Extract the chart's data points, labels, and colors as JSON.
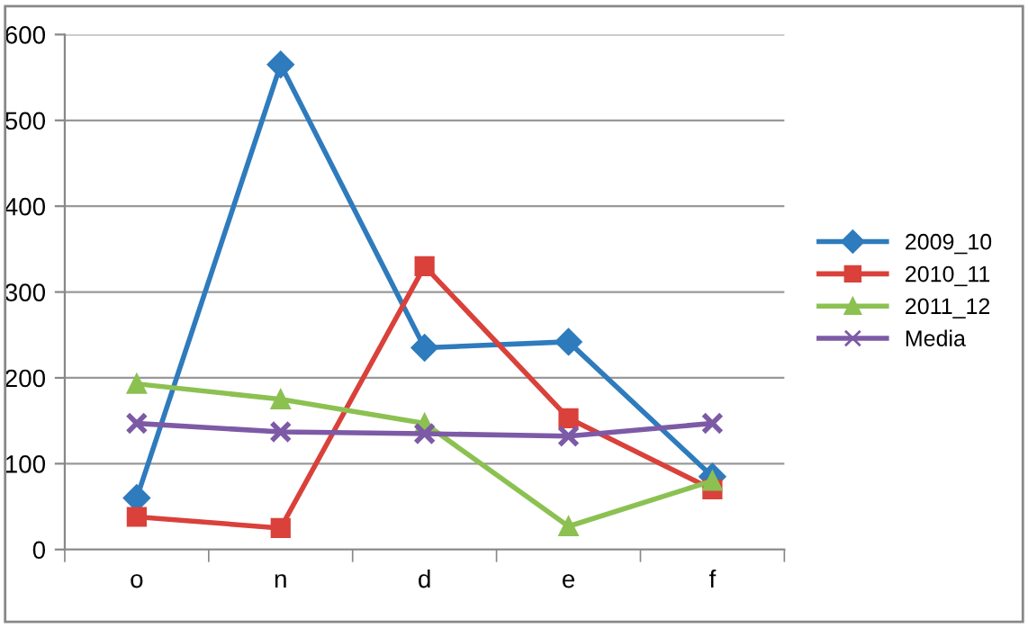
{
  "chart_data": {
    "type": "line",
    "categories": [
      "o",
      "n",
      "d",
      "e",
      "f"
    ],
    "series": [
      {
        "name": "2009_10",
        "color": "#2e7bbd",
        "marker": "diamond",
        "values": [
          60,
          565,
          235,
          242,
          85
        ]
      },
      {
        "name": "2010_11",
        "color": "#d9413a",
        "marker": "square",
        "values": [
          38,
          25,
          330,
          153,
          70
        ]
      },
      {
        "name": "2011_12",
        "color": "#8cc152",
        "marker": "triangle",
        "values": [
          193,
          175,
          147,
          27,
          80
        ]
      },
      {
        "name": "Media",
        "color": "#7d5aa6",
        "marker": "cross",
        "values": [
          147,
          137,
          135,
          132,
          147
        ]
      }
    ],
    "ylim": [
      0,
      600
    ],
    "yticks": [
      0,
      100,
      200,
      300,
      400,
      500,
      600
    ],
    "grid": "y",
    "legend": "right",
    "line_style": "solid"
  }
}
